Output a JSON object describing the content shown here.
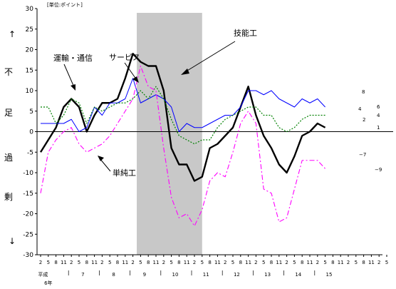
{
  "chart_data": {
    "type": "line",
    "unit_note": "[単位:ポイント]",
    "y_axis_words": [
      "↑",
      "不",
      "足",
      "過",
      "剰",
      "↓"
    ],
    "ylim": [
      -30,
      30
    ],
    "y_ticks": [
      30,
      25,
      20,
      15,
      10,
      5,
      0,
      -5,
      -10,
      -15,
      -20,
      -25,
      -30
    ],
    "x_month_labels": [
      "2",
      "5",
      "8",
      "11",
      "2",
      "5",
      "8",
      "11",
      "2",
      "5",
      "8",
      "11",
      "2",
      "5",
      "8",
      "11",
      "2",
      "5",
      "8",
      "11",
      "2",
      "5",
      "8",
      "11",
      "2",
      "5",
      "8",
      "11",
      "2",
      "5",
      "8",
      "11",
      "2",
      "5",
      "8",
      "11",
      "2",
      "5",
      "8",
      "11",
      "2",
      "5",
      "8",
      "11",
      "2",
      "5"
    ],
    "x_year_labels": [
      {
        "label": "平成",
        "at": 0.5
      },
      {
        "label": "7",
        "at": 5.5
      },
      {
        "label": "8",
        "at": 9.5
      },
      {
        "label": "9",
        "at": 13.5
      },
      {
        "label": "10",
        "at": 17.5
      },
      {
        "label": "11",
        "at": 21.5
      },
      {
        "label": "12",
        "at": 25.5
      },
      {
        "label": "13",
        "at": 29.5
      },
      {
        "label": "14",
        "at": 33.5
      },
      {
        "label": "15",
        "at": 37.5
      }
    ],
    "x_year_sublabel": "6年",
    "shaded_range": [
      12.5,
      21
    ],
    "series": [
      {
        "name": "技能工",
        "color": "#000000",
        "style": "thick",
        "values": [
          -5,
          -2,
          1,
          6,
          8,
          6,
          0,
          4,
          7,
          7,
          8,
          13,
          19,
          17,
          16,
          16,
          10,
          -4,
          -8,
          -8,
          -12,
          -11,
          -4,
          -3,
          -1,
          1,
          6,
          11,
          4,
          -1,
          -4,
          -8,
          -10,
          -6,
          -1,
          0,
          2,
          1
        ]
      },
      {
        "name": "サービス",
        "color": "#0000ff",
        "style": "thin",
        "values": [
          2,
          2,
          2,
          2,
          3,
          0,
          1,
          6,
          4,
          7,
          7,
          8,
          13,
          7,
          8,
          9,
          8,
          6,
          0,
          2,
          1,
          1,
          2,
          3,
          4,
          4,
          6,
          10,
          10,
          9,
          10,
          8,
          7,
          6,
          8,
          7,
          8,
          6
        ]
      },
      {
        "name": "運輸・通信",
        "color": "#008000",
        "style": "dotted",
        "values": [
          6,
          6,
          2,
          4,
          8,
          7,
          2,
          6,
          5,
          6,
          7,
          7,
          8,
          10,
          8,
          11,
          8,
          3,
          -1,
          -2,
          -3,
          -2,
          -2,
          1,
          3,
          4,
          5,
          6,
          6,
          4,
          4,
          1,
          0,
          1,
          3,
          4,
          4,
          4
        ]
      },
      {
        "name": "単純工",
        "color": "#ff00ff",
        "style": "dashdot",
        "values": [
          -15,
          -5,
          -2,
          0,
          1,
          -3,
          -5,
          -4,
          -3,
          -1,
          2,
          5,
          8,
          16,
          11,
          10,
          -4,
          -16,
          -21,
          -20,
          -23,
          -19,
          -12,
          -10,
          -11,
          -5,
          2,
          5,
          2,
          -14,
          -15,
          -22,
          -21,
          -14,
          -7,
          -7,
          -7,
          -9
        ]
      }
    ],
    "end_labels": [
      "8",
      "6",
      "4",
      "4",
      "2",
      "1",
      "−7",
      "−9"
    ]
  }
}
